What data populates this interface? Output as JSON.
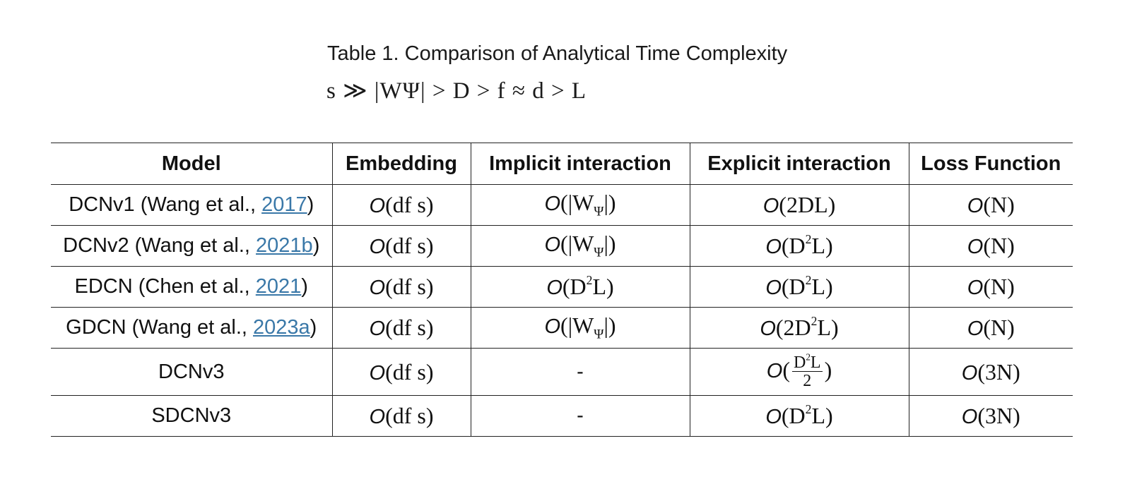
{
  "caption": {
    "title": "Table 1. Comparison of Analytical Time Complexity",
    "ordering": "s ≫ |WΨ| > D > f ≈ d > L"
  },
  "table": {
    "headers": [
      "Model",
      "Embedding",
      "Implicit interaction",
      "Explicit interaction",
      "Loss Function"
    ],
    "rows": [
      {
        "model_name": "DCNv1 (Wang et al., ",
        "model_ref": "2017",
        "model_suffix": ")",
        "embedding": "O(dfs)",
        "implicit": "O(|WΨ|)",
        "explicit": "O(2DL)",
        "loss": "O(N)"
      },
      {
        "model_name": "DCNv2 (Wang et al., ",
        "model_ref": "2021b",
        "model_suffix": ")",
        "embedding": "O(dfs)",
        "implicit": "O(|WΨ|)",
        "explicit": "O(D²L)",
        "loss": "O(N)"
      },
      {
        "model_name": "EDCN (Chen et al., ",
        "model_ref": "2021",
        "model_suffix": ")",
        "embedding": "O(dfs)",
        "implicit": "O(D²L)",
        "explicit": "O(D²L)",
        "loss": "O(N)"
      },
      {
        "model_name": "GDCN (Wang et al., ",
        "model_ref": "2023a",
        "model_suffix": ")",
        "embedding": "O(dfs)",
        "implicit": "O(|WΨ|)",
        "explicit": "O(2D²L)",
        "loss": "O(N)"
      },
      {
        "model_name": "DCNv3",
        "embedding": "O(dfs)",
        "implicit": "-",
        "explicit": "O(D²L/2)",
        "loss": "O(3N)"
      },
      {
        "model_name": "SDCNv3",
        "embedding": "O(dfs)",
        "implicit": "-",
        "explicit": "O(D²L)",
        "loss": "O(3N)"
      }
    ]
  }
}
